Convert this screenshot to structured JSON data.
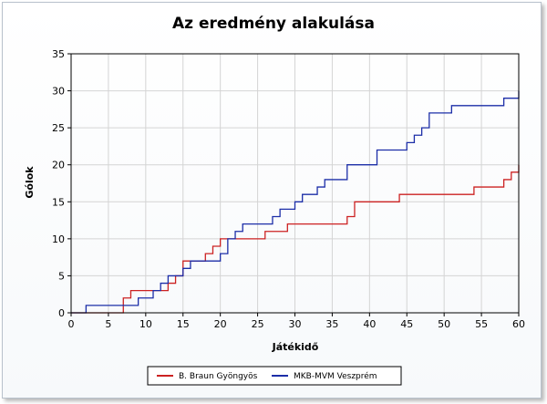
{
  "chart_data": {
    "type": "line",
    "title": "Az eredmény alakulása",
    "xlabel": "Játékidő",
    "ylabel": "Gólok",
    "xlim": [
      0,
      60
    ],
    "ylim": [
      0,
      35
    ],
    "x_ticks": [
      0,
      5,
      10,
      15,
      20,
      25,
      30,
      35,
      40,
      45,
      50,
      55,
      60
    ],
    "y_ticks": [
      0,
      5,
      10,
      15,
      20,
      25,
      30,
      35
    ],
    "grid": true,
    "legend_position": "bottom",
    "step": true,
    "series": [
      {
        "name": "B. Braun Gyöngyös",
        "color": "#cc2222",
        "points": [
          [
            0,
            0
          ],
          [
            7,
            0
          ],
          [
            7,
            2
          ],
          [
            8,
            2
          ],
          [
            8,
            3
          ],
          [
            13,
            3
          ],
          [
            13,
            4
          ],
          [
            14,
            4
          ],
          [
            14,
            5
          ],
          [
            15,
            5
          ],
          [
            15,
            7
          ],
          [
            18,
            7
          ],
          [
            18,
            8
          ],
          [
            19,
            8
          ],
          [
            19,
            9
          ],
          [
            20,
            9
          ],
          [
            20,
            10
          ],
          [
            26,
            10
          ],
          [
            26,
            11
          ],
          [
            29,
            11
          ],
          [
            29,
            12
          ],
          [
            37,
            12
          ],
          [
            37,
            13
          ],
          [
            38,
            13
          ],
          [
            38,
            15
          ],
          [
            44,
            15
          ],
          [
            44,
            16
          ],
          [
            54,
            16
          ],
          [
            54,
            17
          ],
          [
            58,
            17
          ],
          [
            58,
            18
          ],
          [
            59,
            18
          ],
          [
            59,
            19
          ],
          [
            60,
            19
          ],
          [
            60,
            20
          ]
        ]
      },
      {
        "name": "MKB-MVM Veszprém",
        "color": "#1c2ea8",
        "points": [
          [
            0,
            0
          ],
          [
            2,
            0
          ],
          [
            2,
            1
          ],
          [
            9,
            1
          ],
          [
            9,
            2
          ],
          [
            11,
            2
          ],
          [
            11,
            3
          ],
          [
            12,
            3
          ],
          [
            12,
            4
          ],
          [
            13,
            4
          ],
          [
            13,
            5
          ],
          [
            15,
            5
          ],
          [
            15,
            6
          ],
          [
            16,
            6
          ],
          [
            16,
            7
          ],
          [
            20,
            7
          ],
          [
            20,
            8
          ],
          [
            21,
            8
          ],
          [
            21,
            10
          ],
          [
            22,
            10
          ],
          [
            22,
            11
          ],
          [
            23,
            11
          ],
          [
            23,
            12
          ],
          [
            27,
            12
          ],
          [
            27,
            13
          ],
          [
            28,
            13
          ],
          [
            28,
            14
          ],
          [
            30,
            14
          ],
          [
            30,
            15
          ],
          [
            31,
            15
          ],
          [
            31,
            16
          ],
          [
            33,
            16
          ],
          [
            33,
            17
          ],
          [
            34,
            17
          ],
          [
            34,
            18
          ],
          [
            37,
            18
          ],
          [
            37,
            20
          ],
          [
            41,
            20
          ],
          [
            41,
            22
          ],
          [
            45,
            22
          ],
          [
            45,
            23
          ],
          [
            46,
            23
          ],
          [
            46,
            24
          ],
          [
            47,
            24
          ],
          [
            47,
            25
          ],
          [
            48,
            25
          ],
          [
            48,
            27
          ],
          [
            51,
            27
          ],
          [
            51,
            28
          ],
          [
            58,
            28
          ],
          [
            58,
            29
          ],
          [
            60,
            29
          ],
          [
            60,
            30
          ]
        ]
      }
    ]
  }
}
